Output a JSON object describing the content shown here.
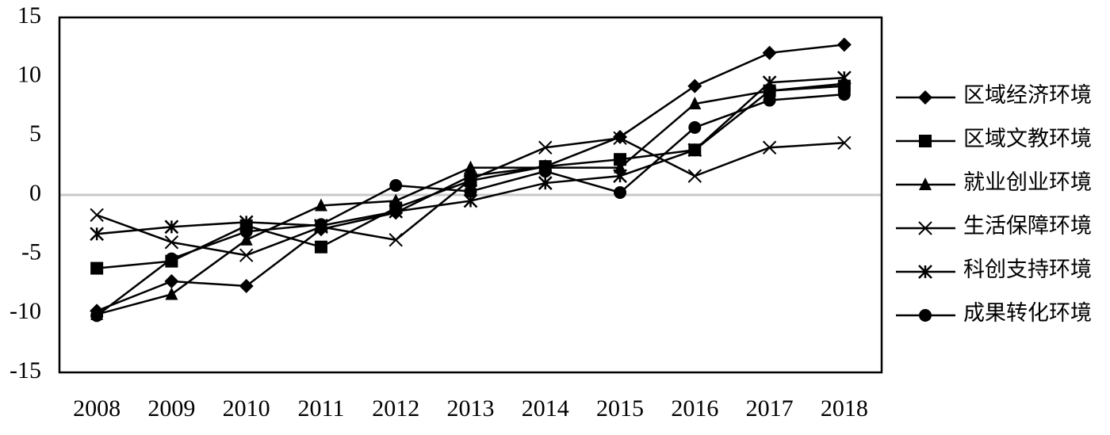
{
  "chart_data": {
    "type": "line",
    "x": [
      2008,
      2009,
      2010,
      2011,
      2012,
      2013,
      2014,
      2015,
      2016,
      2017,
      2018
    ],
    "xlim": [
      2007.5,
      2018.5
    ],
    "ylim": [
      -15,
      15
    ],
    "yticks": [
      -15,
      -10,
      -5,
      0,
      5,
      10,
      15
    ],
    "zero_line": true,
    "legend": "right",
    "series": [
      {
        "name": "区域经济环境",
        "color": "#000000",
        "marker": "diamond",
        "values": [
          -9.8,
          -7.3,
          -7.7,
          -2.9,
          -1.5,
          1.6,
          2.4,
          4.9,
          9.2,
          12.0,
          12.7
        ]
      },
      {
        "name": "区域文教环境",
        "color": "#000000",
        "marker": "square",
        "values": [
          -6.2,
          -5.6,
          -2.6,
          -4.4,
          -1.1,
          1.2,
          2.4,
          3.0,
          3.8,
          8.8,
          9.2
        ]
      },
      {
        "name": "就业创业环境",
        "color": "#000000",
        "marker": "triangle",
        "values": [
          -10.1,
          -8.4,
          -3.8,
          -0.9,
          -0.5,
          2.3,
          2.3,
          2.3,
          7.7,
          8.8,
          9.4
        ]
      },
      {
        "name": "生活保障环境",
        "color": "#000000",
        "marker": "x",
        "values": [
          -1.7,
          -4.0,
          -5.1,
          -2.7,
          -3.8,
          1.3,
          4.0,
          4.8,
          1.6,
          4.0,
          4.4
        ]
      },
      {
        "name": "科创支持环境",
        "color": "#000000",
        "marker": "asterisk",
        "values": [
          -3.3,
          -2.7,
          -2.3,
          -2.6,
          -1.4,
          -0.5,
          1.0,
          1.6,
          3.8,
          9.5,
          9.9
        ]
      },
      {
        "name": "成果转化环境",
        "color": "#000000",
        "marker": "circle",
        "values": [
          -10.2,
          -5.4,
          -3.1,
          -2.5,
          0.8,
          0.3,
          2.0,
          0.2,
          5.7,
          8.0,
          8.5
        ]
      }
    ]
  }
}
